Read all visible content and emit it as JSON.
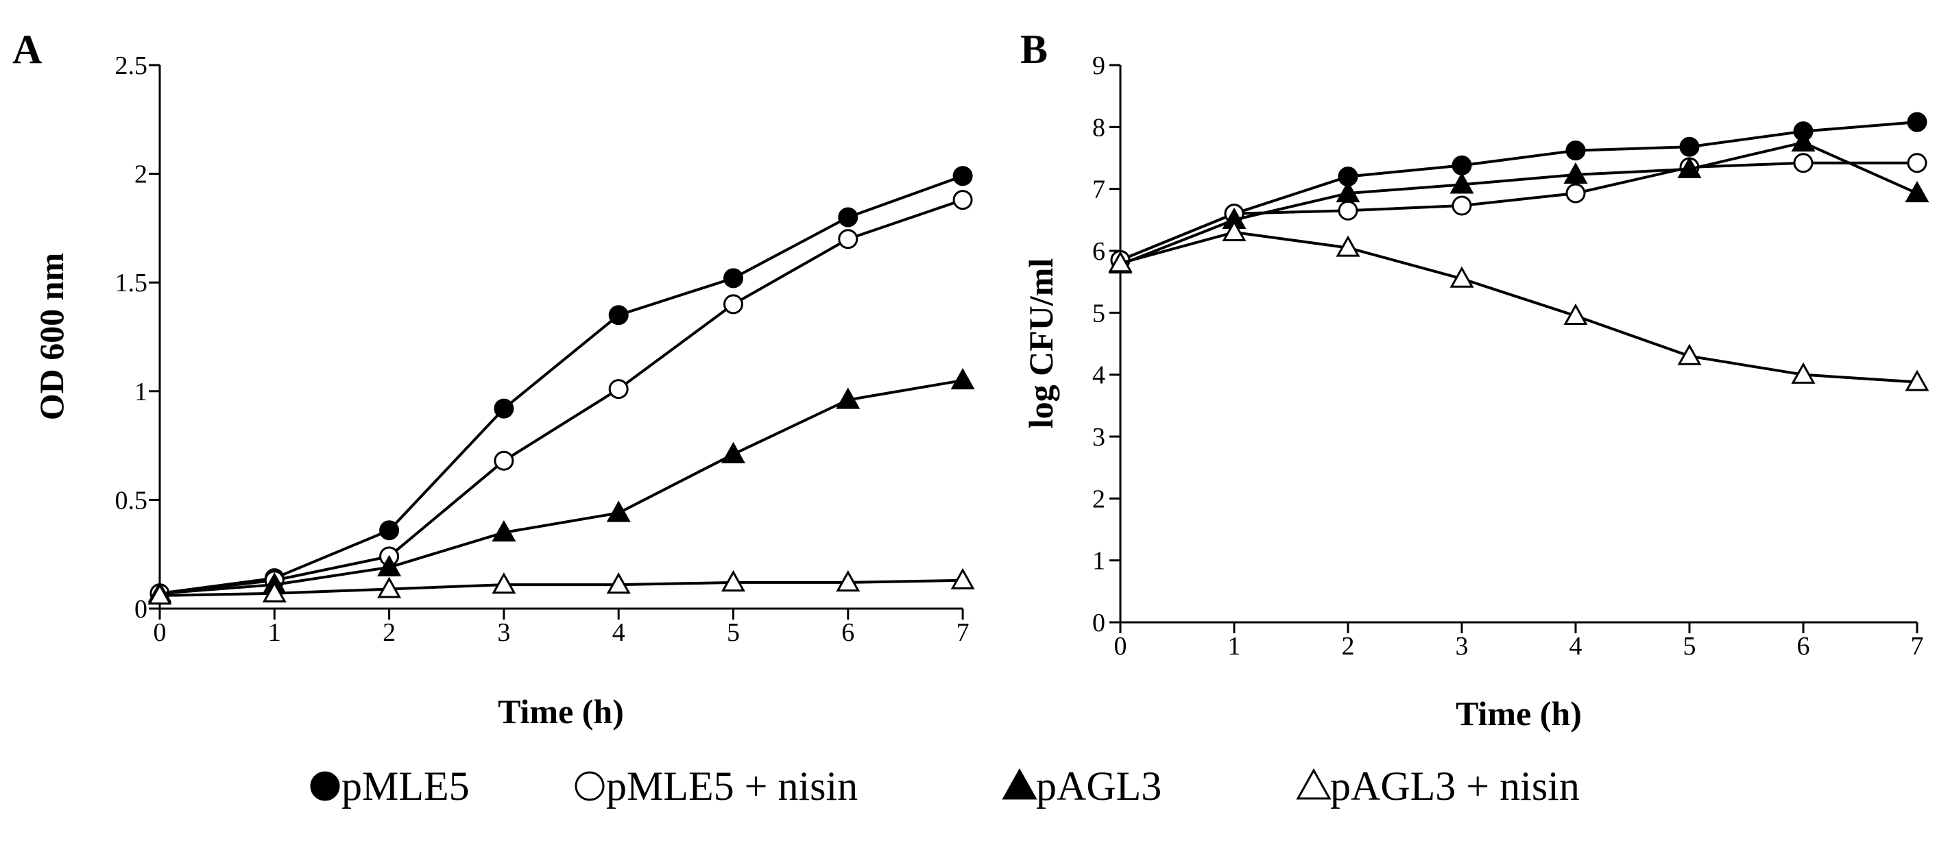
{
  "chart_data": [
    {
      "type": "line",
      "panel": "A",
      "xlabel": "Time (h)",
      "ylabel": "OD 600 nm",
      "xlim": [
        0,
        7
      ],
      "ylim": [
        0,
        2.5
      ],
      "x_ticks": [
        "0",
        "1",
        "2",
        "3",
        "4",
        "5",
        "6",
        "7"
      ],
      "y_ticks": [
        "0",
        "0.5",
        "1",
        "1.5",
        "2",
        "2.5"
      ],
      "x": [
        0,
        1,
        2,
        3,
        4,
        5,
        6,
        7
      ],
      "series": [
        {
          "name": "pMLE5",
          "marker": "filled-circle",
          "values": [
            0.07,
            0.14,
            0.36,
            0.92,
            1.35,
            1.52,
            1.8,
            1.99
          ]
        },
        {
          "name": "pMLE5 + nisin",
          "marker": "open-circle",
          "values": [
            0.07,
            0.13,
            0.24,
            0.68,
            1.01,
            1.4,
            1.7,
            1.88
          ]
        },
        {
          "name": "pAGL3",
          "marker": "filled-triangle",
          "values": [
            0.07,
            0.11,
            0.19,
            0.35,
            0.44,
            0.71,
            0.96,
            1.05
          ]
        },
        {
          "name": "pAGL3 + nisin",
          "marker": "open-triangle",
          "values": [
            0.06,
            0.07,
            0.09,
            0.11,
            0.11,
            0.12,
            0.12,
            0.13
          ]
        }
      ]
    },
    {
      "type": "line",
      "panel": "B",
      "xlabel": "Time (h)",
      "ylabel": "log CFU/ml",
      "xlim": [
        0,
        7
      ],
      "ylim": [
        0,
        9
      ],
      "x_ticks": [
        "0",
        "1",
        "2",
        "3",
        "4",
        "5",
        "6",
        "7"
      ],
      "y_ticks": [
        "0",
        "1",
        "2",
        "3",
        "4",
        "5",
        "6",
        "7",
        "8",
        "9"
      ],
      "x": [
        0,
        1,
        2,
        3,
        4,
        5,
        6,
        7
      ],
      "series": [
        {
          "name": "pMLE5",
          "marker": "filled-circle",
          "values": [
            5.85,
            6.6,
            7.2,
            7.38,
            7.62,
            7.68,
            7.93,
            8.08
          ]
        },
        {
          "name": "pMLE5 + nisin",
          "marker": "open-circle",
          "values": [
            5.85,
            6.6,
            6.65,
            6.73,
            6.93,
            7.35,
            7.42,
            7.42
          ]
        },
        {
          "name": "pAGL3",
          "marker": "filled-triangle",
          "values": [
            5.78,
            6.5,
            6.93,
            7.07,
            7.23,
            7.32,
            7.75,
            6.93
          ]
        },
        {
          "name": "pAGL3 + nisin",
          "marker": "open-triangle",
          "values": [
            5.8,
            6.3,
            6.05,
            5.55,
            4.95,
            4.3,
            4.0,
            3.88
          ]
        }
      ]
    }
  ],
  "legend": [
    {
      "label": "pMLE5",
      "marker": "filled-circle"
    },
    {
      "label": "pMLE5 + nisin",
      "marker": "open-circle"
    },
    {
      "label": "pAGL3",
      "marker": "filled-triangle"
    },
    {
      "label": "pAGL3 + nisin",
      "marker": "open-triangle"
    }
  ],
  "colors": {
    "line": "#000000",
    "background": "#ffffff"
  }
}
